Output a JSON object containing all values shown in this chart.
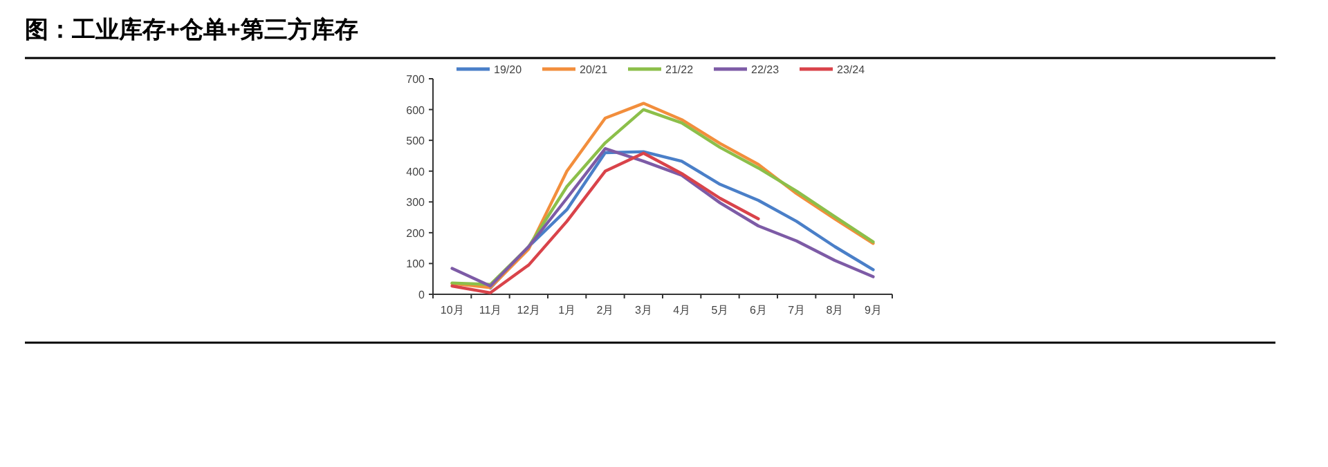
{
  "chart_data": {
    "type": "line",
    "title": "图：工业库存+仓单+第三方库存",
    "categories": [
      "10月",
      "11月",
      "12月",
      "1月",
      "2月",
      "3月",
      "4月",
      "5月",
      "6月",
      "7月",
      "8月",
      "9月"
    ],
    "ylim": [
      0,
      700
    ],
    "yticks": [
      0,
      100,
      200,
      300,
      400,
      500,
      600,
      700
    ],
    "legend": "top",
    "grid": false,
    "series": [
      {
        "name": "19/20",
        "color": "#4a7fc8",
        "values": [
          null,
          20,
          155,
          275,
          460,
          463,
          432,
          357,
          305,
          237,
          155,
          80
        ]
      },
      {
        "name": "20/21",
        "color": "#f28e3c",
        "values": [
          35,
          22,
          147,
          400,
          572,
          620,
          567,
          490,
          422,
          327,
          245,
          165
        ]
      },
      {
        "name": "21/22",
        "color": "#8cbf4a",
        "values": [
          37,
          32,
          155,
          350,
          492,
          600,
          557,
          477,
          410,
          335,
          252,
          170
        ]
      },
      {
        "name": "22/23",
        "color": "#7d5ba6",
        "values": [
          84,
          27,
          155,
          312,
          473,
          432,
          387,
          297,
          222,
          173,
          110,
          57
        ]
      },
      {
        "name": "23/24",
        "color": "#d9434a",
        "values": [
          27,
          5,
          95,
          237,
          400,
          458,
          392,
          312,
          245,
          null,
          null,
          null
        ]
      }
    ]
  }
}
